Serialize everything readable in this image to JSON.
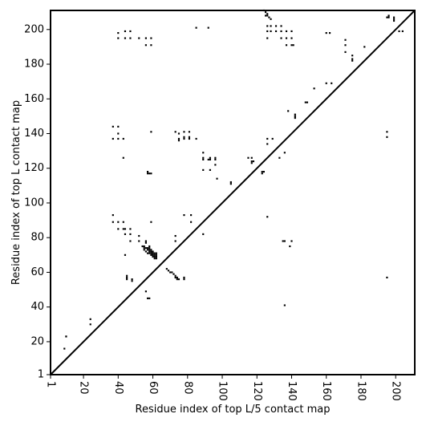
{
  "chart_data": {
    "type": "scatter",
    "title": "",
    "xlabel": "Residue index of top L/5 contact map",
    "ylabel": "Residue index of top L contact map",
    "xlim": [
      1,
      211
    ],
    "ylim": [
      1,
      211
    ],
    "x_ticks": [
      1,
      20,
      40,
      60,
      80,
      100,
      120,
      140,
      160,
      180,
      200
    ],
    "y_ticks": [
      1,
      20,
      40,
      60,
      80,
      100,
      120,
      140,
      160,
      180,
      200
    ],
    "x_tick_rotation": -90,
    "grid": false,
    "diagonal": true,
    "colors": {
      "points": "#000000",
      "diagonal": "#000000",
      "frame": "#000000"
    },
    "upper_series": {
      "name": "",
      "points": [
        [
          10,
          23
        ],
        [
          24,
          33
        ],
        [
          24,
          30
        ],
        [
          37,
          144
        ],
        [
          37,
          137
        ],
        [
          40,
          144
        ],
        [
          40,
          140
        ],
        [
          40,
          137
        ],
        [
          43,
          137
        ],
        [
          43,
          126
        ],
        [
          40,
          198
        ],
        [
          40,
          195
        ],
        [
          44,
          199
        ],
        [
          44,
          195
        ],
        [
          47,
          199
        ],
        [
          47,
          195
        ],
        [
          52,
          195
        ],
        [
          56,
          195
        ],
        [
          59,
          195
        ],
        [
          56,
          191
        ],
        [
          59,
          191
        ],
        [
          59,
          141
        ],
        [
          57,
          118
        ],
        [
          58,
          117
        ],
        [
          59,
          117
        ],
        [
          57,
          117
        ],
        [
          73,
          141
        ],
        [
          75,
          140
        ],
        [
          75,
          137
        ],
        [
          75,
          136
        ],
        [
          78,
          141
        ],
        [
          78,
          138
        ],
        [
          78,
          137
        ],
        [
          81,
          141
        ],
        [
          81,
          138
        ],
        [
          81,
          137
        ],
        [
          85,
          137
        ],
        [
          85,
          201
        ],
        [
          92,
          201
        ],
        [
          89,
          129
        ],
        [
          89,
          126
        ],
        [
          89,
          125
        ],
        [
          89,
          119
        ],
        [
          92,
          125
        ],
        [
          93,
          126
        ],
        [
          93,
          125
        ],
        [
          93,
          119
        ],
        [
          96,
          126
        ],
        [
          96,
          125
        ],
        [
          96,
          122
        ],
        [
          97,
          114
        ],
        [
          105,
          111
        ],
        [
          115,
          126
        ],
        [
          117,
          126
        ],
        [
          117,
          124
        ],
        [
          117,
          123
        ],
        [
          118,
          124
        ],
        [
          123,
          118
        ],
        [
          123,
          117
        ],
        [
          124,
          118
        ],
        [
          124,
          211
        ],
        [
          125,
          210
        ],
        [
          126,
          209
        ],
        [
          126,
          208
        ],
        [
          127,
          207
        ],
        [
          128,
          206
        ],
        [
          125,
          208
        ],
        [
          126,
          202
        ],
        [
          126,
          199
        ],
        [
          126,
          195
        ],
        [
          128,
          202
        ],
        [
          128,
          199
        ],
        [
          131,
          202
        ],
        [
          131,
          199
        ],
        [
          134,
          202
        ],
        [
          134,
          199
        ],
        [
          134,
          195
        ],
        [
          137,
          199
        ],
        [
          137,
          195
        ],
        [
          140,
          199
        ],
        [
          140,
          195
        ],
        [
          137,
          191
        ],
        [
          140,
          191
        ],
        [
          141,
          191
        ],
        [
          126,
          137
        ],
        [
          126,
          134
        ],
        [
          129,
          137
        ],
        [
          133,
          126
        ],
        [
          136,
          129
        ],
        [
          138,
          153
        ],
        [
          142,
          151
        ],
        [
          142,
          150
        ],
        [
          142,
          149
        ],
        [
          148,
          158
        ],
        [
          149,
          158
        ],
        [
          153,
          166
        ],
        [
          160,
          169
        ],
        [
          160,
          198
        ],
        [
          162,
          198
        ],
        [
          163,
          169
        ],
        [
          171,
          194
        ],
        [
          171,
          191
        ],
        [
          171,
          187
        ],
        [
          175,
          185
        ],
        [
          175,
          183
        ],
        [
          175,
          182
        ],
        [
          182,
          190
        ],
        [
          195,
          207
        ],
        [
          196,
          208
        ],
        [
          196,
          207
        ],
        [
          199,
          207
        ],
        [
          199,
          206
        ],
        [
          199,
          205
        ],
        [
          202,
          199
        ],
        [
          204,
          199
        ]
      ]
    },
    "lower_series": {
      "name": "",
      "points": [
        [
          10,
          23
        ],
        [
          9,
          16
        ],
        [
          37,
          93
        ],
        [
          37,
          89
        ],
        [
          40,
          89
        ],
        [
          40,
          85
        ],
        [
          43,
          89
        ],
        [
          43,
          85
        ],
        [
          44,
          85
        ],
        [
          44,
          82
        ],
        [
          47,
          85
        ],
        [
          47,
          82
        ],
        [
          47,
          78
        ],
        [
          52,
          81
        ],
        [
          52,
          78
        ],
        [
          56,
          78
        ],
        [
          56,
          77
        ],
        [
          59,
          89
        ],
        [
          44,
          70
        ],
        [
          45,
          58
        ],
        [
          45,
          57
        ],
        [
          45,
          56
        ],
        [
          48,
          56
        ],
        [
          48,
          55
        ],
        [
          56,
          49
        ],
        [
          57,
          45
        ],
        [
          58,
          45
        ],
        [
          54,
          75
        ],
        [
          55,
          75
        ],
        [
          55,
          74
        ],
        [
          56,
          74
        ],
        [
          57,
          74
        ],
        [
          57,
          73
        ],
        [
          58,
          75
        ],
        [
          58,
          74
        ],
        [
          58,
          73
        ],
        [
          58,
          72
        ],
        [
          58,
          71
        ],
        [
          59,
          73
        ],
        [
          59,
          72
        ],
        [
          59,
          71
        ],
        [
          59,
          70
        ],
        [
          60,
          72
        ],
        [
          60,
          71
        ],
        [
          60,
          70
        ],
        [
          60,
          69
        ],
        [
          61,
          71
        ],
        [
          61,
          70
        ],
        [
          61,
          69
        ],
        [
          61,
          68
        ],
        [
          62,
          71
        ],
        [
          62,
          70
        ],
        [
          62,
          69
        ],
        [
          62,
          68
        ],
        [
          56,
          72
        ],
        [
          57,
          71
        ],
        [
          55,
          73
        ],
        [
          68,
          62
        ],
        [
          69,
          61
        ],
        [
          70,
          60
        ],
        [
          71,
          60
        ],
        [
          72,
          59
        ],
        [
          73,
          58
        ],
        [
          73,
          57
        ],
        [
          74,
          57
        ],
        [
          74,
          56
        ],
        [
          75,
          56
        ],
        [
          73,
          81
        ],
        [
          73,
          78
        ],
        [
          78,
          93
        ],
        [
          78,
          57
        ],
        [
          78,
          56
        ],
        [
          82,
          93
        ],
        [
          82,
          89
        ],
        [
          89,
          82
        ],
        [
          105,
          112
        ],
        [
          126,
          92
        ],
        [
          135,
          78
        ],
        [
          136,
          78
        ],
        [
          139,
          75
        ],
        [
          140,
          78
        ],
        [
          136,
          41
        ],
        [
          195,
          141
        ],
        [
          195,
          138
        ],
        [
          195,
          57
        ]
      ]
    }
  }
}
